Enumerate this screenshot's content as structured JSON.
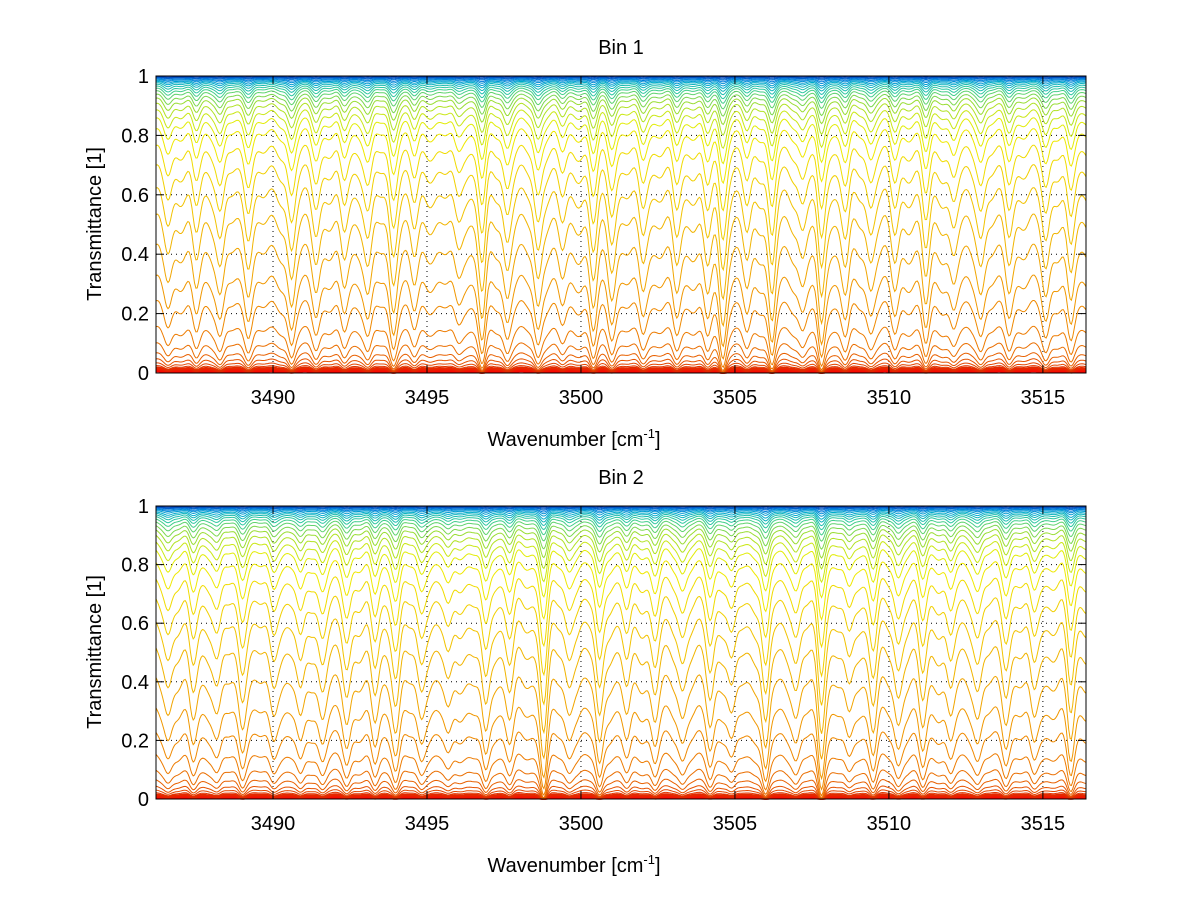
{
  "chart_data": [
    {
      "type": "line",
      "title": "Bin 1",
      "xlabel": "Wavenumber [cm",
      "xlabel_sup": "-1",
      "xlabel_tail": "]",
      "ylabel": "Transmittance [1]",
      "xlim": [
        3486.2,
        3516.4
      ],
      "ylim": [
        0,
        1
      ],
      "grid": true,
      "xticks": [
        3490,
        3495,
        3500,
        3505,
        3510,
        3515
      ],
      "yticks": [
        0,
        0.2,
        0.4,
        0.6,
        0.8,
        1
      ],
      "xtick_labels": [
        "3490",
        "3495",
        "3500",
        "3505",
        "3510",
        "3515"
      ],
      "ytick_labels": [
        "0",
        "0.2",
        "0.4",
        "0.6",
        "0.8",
        "1"
      ],
      "line_count": 36,
      "baselines": [
        0.005,
        0.008,
        0.012,
        0.016,
        0.022,
        0.03,
        0.042,
        0.06,
        0.09,
        0.14,
        0.22,
        0.3,
        0.4,
        0.5,
        0.59,
        0.67,
        0.74,
        0.8,
        0.84,
        0.87,
        0.895,
        0.915,
        0.93,
        0.943,
        0.953,
        0.961,
        0.968,
        0.974,
        0.979,
        0.983,
        0.987,
        0.99,
        0.993,
        0.995,
        0.997,
        0.999
      ],
      "absorption_lines": [
        {
          "x": 3486.6,
          "s": 0.35
        },
        {
          "x": 3487.5,
          "s": 0.5
        },
        {
          "x": 3488.3,
          "s": 0.55
        },
        {
          "x": 3489.2,
          "s": 0.45
        },
        {
          "x": 3490.6,
          "s": 0.7
        },
        {
          "x": 3491.4,
          "s": 0.45
        },
        {
          "x": 3492.3,
          "s": 0.5
        },
        {
          "x": 3493.1,
          "s": 0.55
        },
        {
          "x": 3493.9,
          "s": 0.7
        },
        {
          "x": 3494.6,
          "s": 0.45
        },
        {
          "x": 3496.0,
          "s": 0.35
        },
        {
          "x": 3496.8,
          "s": 0.9
        },
        {
          "x": 3497.6,
          "s": 0.55
        },
        {
          "x": 3498.6,
          "s": 0.7
        },
        {
          "x": 3499.4,
          "s": 0.35
        },
        {
          "x": 3500.4,
          "s": 0.75
        },
        {
          "x": 3501.0,
          "s": 0.5
        },
        {
          "x": 3502.0,
          "s": 0.45
        },
        {
          "x": 3503.1,
          "s": 0.5
        },
        {
          "x": 3504.1,
          "s": 0.6
        },
        {
          "x": 3504.6,
          "s": 0.9
        },
        {
          "x": 3505.4,
          "s": 0.5
        },
        {
          "x": 3506.2,
          "s": 0.95
        },
        {
          "x": 3507.2,
          "s": 0.45
        },
        {
          "x": 3507.8,
          "s": 1.0
        },
        {
          "x": 3508.6,
          "s": 0.55
        },
        {
          "x": 3509.4,
          "s": 0.45
        },
        {
          "x": 3510.2,
          "s": 0.5
        },
        {
          "x": 3511.2,
          "s": 0.7
        },
        {
          "x": 3512.1,
          "s": 0.45
        },
        {
          "x": 3513.0,
          "s": 0.5
        },
        {
          "x": 3513.9,
          "s": 0.45
        },
        {
          "x": 3515.1,
          "s": 0.55
        },
        {
          "x": 3515.9,
          "s": 0.7
        }
      ]
    },
    {
      "type": "line",
      "title": "Bin 2",
      "xlabel": "Wavenumber [cm",
      "xlabel_sup": "-1",
      "xlabel_tail": "]",
      "ylabel": "Transmittance [1]",
      "xlim": [
        3486.2,
        3516.4
      ],
      "ylim": [
        0,
        1
      ],
      "grid": true,
      "xticks": [
        3490,
        3495,
        3500,
        3505,
        3510,
        3515
      ],
      "yticks": [
        0,
        0.2,
        0.4,
        0.6,
        0.8,
        1
      ],
      "xtick_labels": [
        "3490",
        "3495",
        "3500",
        "3505",
        "3510",
        "3515"
      ],
      "ytick_labels": [
        "0",
        "0.2",
        "0.4",
        "0.6",
        "0.8",
        "1"
      ],
      "line_count": 36,
      "baselines": [
        0.004,
        0.007,
        0.01,
        0.014,
        0.02,
        0.028,
        0.04,
        0.06,
        0.09,
        0.14,
        0.21,
        0.29,
        0.39,
        0.49,
        0.58,
        0.66,
        0.73,
        0.79,
        0.835,
        0.865,
        0.89,
        0.91,
        0.926,
        0.94,
        0.951,
        0.96,
        0.967,
        0.973,
        0.978,
        0.983,
        0.987,
        0.99,
        0.993,
        0.995,
        0.997,
        0.999
      ],
      "absorption_lines": [
        {
          "x": 3486.6,
          "s": 0.4
        },
        {
          "x": 3487.4,
          "s": 0.5
        },
        {
          "x": 3488.2,
          "s": 0.45
        },
        {
          "x": 3489.0,
          "s": 0.5
        },
        {
          "x": 3490.0,
          "s": 0.4
        },
        {
          "x": 3490.9,
          "s": 0.55
        },
        {
          "x": 3491.6,
          "s": 0.45
        },
        {
          "x": 3492.4,
          "s": 0.5
        },
        {
          "x": 3493.3,
          "s": 0.55
        },
        {
          "x": 3494.0,
          "s": 0.6
        },
        {
          "x": 3494.8,
          "s": 0.45
        },
        {
          "x": 3495.7,
          "s": 0.4
        },
        {
          "x": 3496.9,
          "s": 0.75
        },
        {
          "x": 3497.7,
          "s": 0.45
        },
        {
          "x": 3498.8,
          "s": 0.95
        },
        {
          "x": 3499.6,
          "s": 0.4
        },
        {
          "x": 3500.6,
          "s": 0.85
        },
        {
          "x": 3501.5,
          "s": 0.45
        },
        {
          "x": 3502.4,
          "s": 0.5
        },
        {
          "x": 3503.3,
          "s": 0.45
        },
        {
          "x": 3504.2,
          "s": 0.55
        },
        {
          "x": 3504.9,
          "s": 0.5
        },
        {
          "x": 3506.0,
          "s": 0.95
        },
        {
          "x": 3507.0,
          "s": 0.45
        },
        {
          "x": 3507.8,
          "s": 0.95
        },
        {
          "x": 3508.7,
          "s": 0.5
        },
        {
          "x": 3509.5,
          "s": 0.6
        },
        {
          "x": 3510.3,
          "s": 0.55
        },
        {
          "x": 3511.1,
          "s": 0.6
        },
        {
          "x": 3512.0,
          "s": 0.5
        },
        {
          "x": 3512.9,
          "s": 0.45
        },
        {
          "x": 3513.8,
          "s": 0.45
        },
        {
          "x": 3514.7,
          "s": 0.5
        },
        {
          "x": 3515.9,
          "s": 0.75
        }
      ]
    }
  ],
  "colors": {
    "axes": "#000000",
    "grid": "#000000",
    "colormap": [
      "#0033aa",
      "#0077dd",
      "#00aacc",
      "#33cc99",
      "#99dd33",
      "#eeee00",
      "#f2c200",
      "#f09000",
      "#e86000",
      "#e03000",
      "#ff0000"
    ]
  }
}
